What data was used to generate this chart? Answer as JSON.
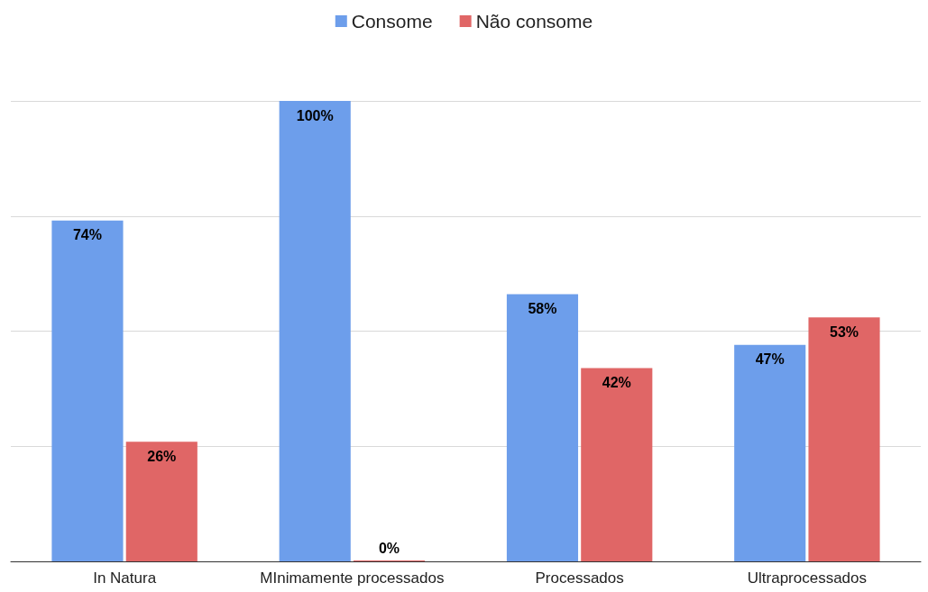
{
  "chart_data": {
    "type": "bar",
    "categories": [
      "In Natura",
      "MInimamente processados",
      "Processados",
      "Ultraprocessados"
    ],
    "series": [
      {
        "name": "Consome",
        "color": "#6d9eeb",
        "values": [
          74,
          100,
          58,
          47
        ],
        "value_labels": [
          "74%",
          "100%",
          "58%",
          "47%"
        ]
      },
      {
        "name": "Não consome",
        "color": "#e06666",
        "values": [
          26,
          0,
          42,
          53
        ],
        "value_labels": [
          "26%",
          "0%",
          "42%",
          "53%"
        ]
      }
    ],
    "ylim": [
      0,
      100
    ],
    "yticks": [
      {
        "value": 0,
        "label": null
      },
      {
        "value": 25,
        "label": null
      },
      {
        "value": 50,
        "label": null
      },
      {
        "value": 75,
        "label": null
      },
      {
        "value": 100,
        "label": null
      }
    ],
    "tick_labels": "x",
    "grid": "y",
    "legend": "top"
  }
}
